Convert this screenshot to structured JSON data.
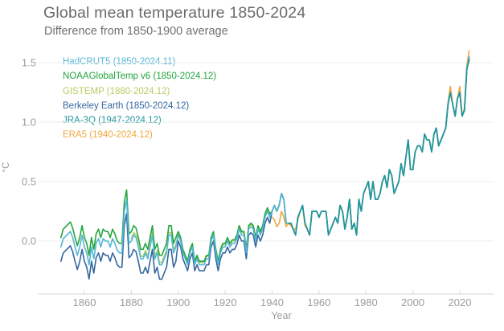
{
  "chart_data": {
    "type": "line",
    "title": "Global mean temperature 1850-2024",
    "subtitle": "Difference from 1850-1900 average",
    "xlabel": "Year",
    "ylabel": "°C",
    "xlim": [
      1850,
      2024
    ],
    "ylim": [
      -0.45,
      1.6
    ],
    "xticks": [
      1860,
      1880,
      1900,
      1920,
      1940,
      1960,
      1980,
      2000,
      2020
    ],
    "yticks": [
      0,
      0.5,
      1,
      1.5
    ],
    "ytick_labels": [
      "0.0",
      "0.5",
      "1.0",
      "1.5"
    ],
    "grid": "horizontal",
    "legend_position": "top-left inside plot",
    "axis_color": "#d6d6d6",
    "grid_color": "#ededed",
    "tick_label_color": "#9c9c9c",
    "series": [
      {
        "name": "HadCRUT5 (1850-2024.11)",
        "color": "#54b6d8",
        "start_year": 1850,
        "values": [
          -0.05,
          0.02,
          0.04,
          0.06,
          0.08,
          0.03,
          -0.05,
          -0.12,
          -0.05,
          0.05,
          -0.05,
          -0.1,
          -0.2,
          -0.05,
          -0.15,
          -0.02,
          0.02,
          -0.05,
          0.02,
          0,
          0,
          -0.05,
          0.02,
          -0.02,
          -0.08,
          -0.1,
          -0.1,
          0.25,
          0.35,
          -0.02,
          0,
          0.05,
          0.03,
          -0.05,
          -0.15,
          -0.15,
          -0.1,
          -0.15,
          -0.05,
          0.05,
          -0.15,
          -0.1,
          -0.2,
          -0.2,
          -0.15,
          -0.1,
          0.05,
          0.05,
          -0.1,
          -0.05,
          0.05,
          0,
          -0.1,
          -0.15,
          -0.2,
          -0.1,
          -0.05,
          -0.2,
          -0.15,
          -0.2,
          -0.2,
          -0.2,
          -0.15,
          -0.15,
          0,
          0.05,
          -0.1,
          -0.2,
          -0.1,
          -0.05,
          -0.05,
          0,
          -0.05,
          -0.02,
          -0.02,
          0.02,
          0.1,
          0.05,
          0.05,
          -0.1,
          0.1,
          0.12,
          0.1,
          0,
          0.1,
          0.05,
          0.1,
          0.2,
          0.25,
          0.2,
          0.25,
          0.3,
          0.25,
          0.3,
          0.4,
          0.35,
          0.15,
          0.15,
          0.15,
          0.1,
          0.05,
          0.2,
          0.25,
          0.3,
          0.15,
          0.1,
          0.05,
          0.25,
          0.25,
          0.25,
          0.2,
          0.25,
          0.25,
          0.25,
          0.05,
          0.1,
          0.15,
          0.2,
          0.15,
          0.3,
          0.25,
          0.1,
          0.2,
          0.35,
          0.1,
          0.15,
          0.05,
          0.35,
          0.25,
          0.4,
          0.45,
          0.5,
          0.35,
          0.5,
          0.35,
          0.35,
          0.4,
          0.5,
          0.55,
          0.45,
          0.6,
          0.55,
          0.4,
          0.45,
          0.5,
          0.65,
          0.55,
          0.7,
          0.85,
          0.6,
          0.6,
          0.75,
          0.8,
          0.8,
          0.75,
          0.9,
          0.85,
          0.85,
          0.75,
          0.9,
          0.95,
          0.8,
          0.85,
          0.9,
          0.95,
          1.15,
          1.25,
          1.15,
          1.05,
          1.2,
          1.25,
          1.05,
          1.1,
          1.45,
          1.55
        ]
      },
      {
        "name": "NOAAGlobalTemp v6 (1850-2024.12)",
        "color": "#22a63e",
        "start_year": 1850,
        "values": [
          0.03,
          0.1,
          0.12,
          0.14,
          0.16,
          0.11,
          0.03,
          -0.04,
          0.03,
          0.13,
          0.03,
          -0.02,
          -0.12,
          0.03,
          -0.07,
          0.06,
          0.1,
          0.03,
          0.1,
          0.08,
          0.08,
          0.03,
          0.1,
          0.06,
          0,
          -0.02,
          -0.02,
          0.33,
          0.43,
          0.06,
          0.08,
          0.13,
          0.11,
          0.03,
          -0.07,
          -0.07,
          -0.02,
          -0.07,
          0.03,
          0.13,
          -0.07,
          -0.02,
          -0.12,
          -0.12,
          -0.07,
          -0.02,
          0.13,
          0.13,
          -0.02,
          0.03,
          0.08,
          0.03,
          -0.07,
          -0.12,
          -0.17,
          -0.07,
          -0.02,
          -0.17,
          -0.12,
          -0.17,
          -0.17,
          -0.17,
          -0.12,
          -0.12,
          0.03,
          0.08,
          -0.07,
          -0.17,
          -0.07,
          -0.02,
          -0.02,
          0.03,
          -0.02,
          0.01,
          0.01,
          0.05,
          0.13,
          0.08,
          0.08,
          -0.07,
          0.13,
          0.15,
          0.13,
          0.03,
          0.13,
          0.08,
          0.13,
          0.23,
          0.28,
          0.23,
          0.25,
          0.3,
          0.25,
          0.3,
          0.4,
          0.35,
          0.15,
          0.15,
          0.15,
          0.1,
          0.05,
          0.2,
          0.25,
          0.3,
          0.15,
          0.1,
          0.05,
          0.25,
          0.25,
          0.25,
          0.2,
          0.25,
          0.25,
          0.25,
          0.05,
          0.1,
          0.15,
          0.2,
          0.15,
          0.3,
          0.25,
          0.1,
          0.2,
          0.35,
          0.1,
          0.15,
          0.05,
          0.35,
          0.25,
          0.4,
          0.45,
          0.5,
          0.35,
          0.5,
          0.35,
          0.35,
          0.4,
          0.5,
          0.55,
          0.45,
          0.6,
          0.55,
          0.4,
          0.45,
          0.5,
          0.65,
          0.55,
          0.7,
          0.85,
          0.6,
          0.6,
          0.75,
          0.8,
          0.8,
          0.75,
          0.9,
          0.85,
          0.85,
          0.75,
          0.9,
          0.95,
          0.8,
          0.85,
          0.9,
          0.95,
          1.15,
          1.25,
          1.15,
          1.05,
          1.2,
          1.25,
          1.05,
          1.1,
          1.45,
          1.52
        ]
      },
      {
        "name": "GISTEMP (1880-2024.12)",
        "color": "#b6cc62",
        "start_year": 1880,
        "values": [
          0.02,
          0.07,
          0.05,
          -0.03,
          -0.13,
          -0.13,
          -0.08,
          -0.13,
          -0.03,
          0.07,
          -0.13,
          -0.08,
          -0.18,
          -0.18,
          -0.13,
          -0.08,
          0.07,
          0.07,
          -0.08,
          -0.03,
          0.07,
          0.02,
          -0.08,
          -0.13,
          -0.18,
          -0.08,
          -0.03,
          -0.18,
          -0.13,
          -0.18,
          -0.18,
          -0.18,
          -0.13,
          -0.13,
          0.02,
          0.07,
          -0.08,
          -0.18,
          -0.08,
          -0.03,
          -0.03,
          0.02,
          -0.03,
          0,
          0,
          0.04,
          0.12,
          0.07,
          0.07,
          -0.08,
          0.12,
          0.14,
          0.12,
          0.02,
          0.12,
          0.07,
          0.12,
          0.22,
          0.27,
          0.22,
          0.25,
          0.3,
          0.25,
          0.3,
          0.4,
          0.35,
          0.15,
          0.15,
          0.15,
          0.1,
          0.05,
          0.2,
          0.25,
          0.3,
          0.15,
          0.1,
          0.05,
          0.25,
          0.25,
          0.25,
          0.2,
          0.25,
          0.25,
          0.25,
          0.05,
          0.1,
          0.15,
          0.2,
          0.15,
          0.3,
          0.25,
          0.1,
          0.2,
          0.35,
          0.1,
          0.15,
          0.05,
          0.35,
          0.25,
          0.4,
          0.45,
          0.5,
          0.35,
          0.5,
          0.35,
          0.35,
          0.4,
          0.5,
          0.55,
          0.45,
          0.6,
          0.55,
          0.4,
          0.45,
          0.5,
          0.65,
          0.55,
          0.7,
          0.85,
          0.6,
          0.6,
          0.75,
          0.8,
          0.8,
          0.75,
          0.9,
          0.85,
          0.85,
          0.75,
          0.9,
          0.95,
          0.8,
          0.85,
          0.9,
          0.95,
          1.15,
          1.25,
          1.15,
          1.05,
          1.2,
          1.25,
          1.05,
          1.1,
          1.45,
          1.54
        ]
      },
      {
        "name": "Berkeley Earth (1850-2024.12)",
        "color": "#35679f",
        "start_year": 1850,
        "values": [
          -0.17,
          -0.1,
          -0.08,
          -0.06,
          -0.04,
          -0.09,
          -0.17,
          -0.24,
          -0.17,
          -0.07,
          -0.17,
          -0.22,
          -0.32,
          -0.17,
          -0.27,
          -0.14,
          -0.1,
          -0.17,
          -0.1,
          -0.12,
          -0.12,
          -0.17,
          -0.1,
          -0.14,
          -0.2,
          -0.22,
          -0.22,
          0.13,
          0.23,
          -0.14,
          -0.12,
          -0.07,
          -0.09,
          -0.17,
          -0.27,
          -0.27,
          -0.22,
          -0.27,
          -0.17,
          -0.07,
          -0.27,
          -0.22,
          -0.32,
          -0.32,
          -0.27,
          -0.22,
          -0.07,
          -0.07,
          -0.22,
          -0.17,
          0,
          -0.05,
          -0.15,
          -0.2,
          -0.25,
          -0.15,
          -0.1,
          -0.25,
          -0.2,
          -0.25,
          -0.25,
          -0.25,
          -0.2,
          -0.2,
          -0.05,
          0,
          -0.15,
          -0.25,
          -0.15,
          -0.1,
          -0.1,
          -0.05,
          -0.1,
          -0.07,
          -0.07,
          -0.03,
          0.05,
          0,
          0,
          -0.15,
          0.05,
          0.07,
          0.05,
          -0.05,
          0.05,
          0,
          0.05,
          0.15,
          0.2,
          0.15,
          0.25,
          0.3,
          0.25,
          0.3,
          0.4,
          0.35,
          0.15,
          0.15,
          0.15,
          0.1,
          0.05,
          0.2,
          0.25,
          0.3,
          0.15,
          0.1,
          0.05,
          0.25,
          0.25,
          0.25,
          0.2,
          0.25,
          0.25,
          0.25,
          0.05,
          0.1,
          0.15,
          0.2,
          0.15,
          0.3,
          0.25,
          0.1,
          0.2,
          0.35,
          0.1,
          0.15,
          0.05,
          0.35,
          0.25,
          0.4,
          0.45,
          0.5,
          0.35,
          0.5,
          0.35,
          0.35,
          0.4,
          0.5,
          0.55,
          0.45,
          0.6,
          0.55,
          0.4,
          0.45,
          0.5,
          0.65,
          0.55,
          0.7,
          0.85,
          0.6,
          0.6,
          0.75,
          0.8,
          0.8,
          0.75,
          0.9,
          0.85,
          0.85,
          0.75,
          0.9,
          0.95,
          0.8,
          0.85,
          0.9,
          0.95,
          1.15,
          1.25,
          1.15,
          1.05,
          1.2,
          1.25,
          1.05,
          1.1,
          1.45,
          1.55
        ]
      },
      {
        "name": "JRA-3Q (1947-2024.12)",
        "color": "#1e969e",
        "start_year": 1947,
        "values": [
          0.15,
          0.15,
          0.1,
          0.05,
          0.2,
          0.25,
          0.3,
          0.15,
          0.1,
          0.05,
          0.25,
          0.25,
          0.25,
          0.2,
          0.25,
          0.25,
          0.25,
          0.05,
          0.1,
          0.15,
          0.2,
          0.15,
          0.3,
          0.25,
          0.1,
          0.2,
          0.35,
          0.1,
          0.15,
          0.05,
          0.35,
          0.25,
          0.4,
          0.45,
          0.5,
          0.35,
          0.5,
          0.35,
          0.35,
          0.4,
          0.5,
          0.55,
          0.45,
          0.6,
          0.55,
          0.4,
          0.45,
          0.5,
          0.65,
          0.55,
          0.7,
          0.85,
          0.6,
          0.6,
          0.75,
          0.8,
          0.8,
          0.75,
          0.9,
          0.85,
          0.85,
          0.75,
          0.9,
          0.95,
          0.8,
          0.85,
          0.9,
          0.95,
          1.15,
          1.25,
          1.15,
          1.05,
          1.2,
          1.25,
          1.05,
          1.1,
          1.45,
          1.53
        ]
      },
      {
        "name": "ERA5 (1940-2024.12)",
        "color": "#f1a83e",
        "start_year": 1940,
        "values": [
          0.2,
          0.18,
          0.12,
          0.15,
          0.25,
          0.2,
          0.12,
          0.15,
          0.13,
          0.1,
          0.1,
          0.18,
          0.25,
          0.3,
          0.13,
          0.1,
          0.05,
          0.25,
          0.25,
          0.25,
          0.2,
          0.25,
          0.25,
          0.25,
          0.05,
          0.1,
          0.15,
          0.2,
          0.15,
          0.3,
          0.25,
          0.1,
          0.2,
          0.35,
          0.1,
          0.15,
          0.05,
          0.35,
          0.25,
          0.4,
          0.45,
          0.5,
          0.35,
          0.5,
          0.35,
          0.35,
          0.4,
          0.5,
          0.55,
          0.45,
          0.6,
          0.55,
          0.4,
          0.45,
          0.5,
          0.65,
          0.55,
          0.7,
          0.85,
          0.6,
          0.6,
          0.75,
          0.8,
          0.8,
          0.75,
          0.9,
          0.85,
          0.85,
          0.75,
          0.9,
          0.95,
          0.8,
          0.85,
          0.9,
          0.95,
          1.17,
          1.3,
          1.15,
          1.05,
          1.2,
          1.3,
          1.05,
          1.12,
          1.48,
          1.6
        ]
      }
    ]
  }
}
